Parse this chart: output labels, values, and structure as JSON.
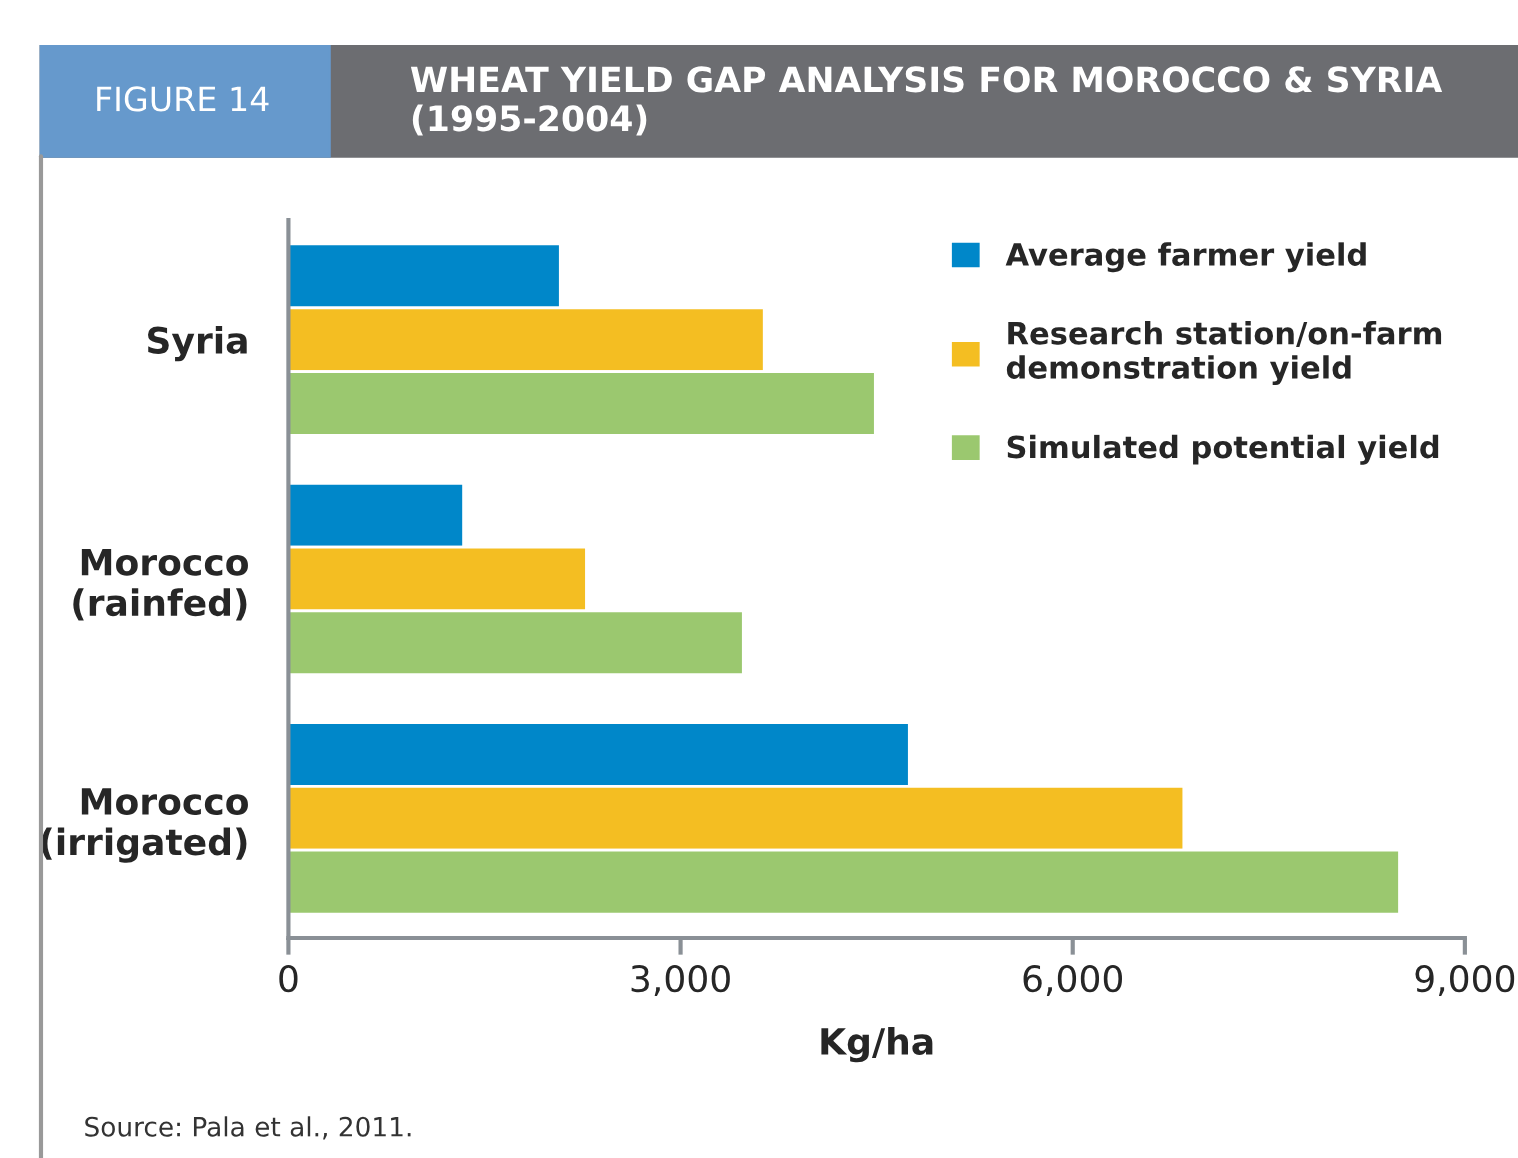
{
  "chart_data": {
    "type": "bar",
    "orientation": "horizontal",
    "title": "WHEAT YIELD GAP ANALYSIS FOR MOROCCO & SYRIA\n(1995-2004)",
    "xlabel": "Kg/ha",
    "annotations": [
      "FIGURE 14",
      "Source: Pala et al., 2011."
    ],
    "categories": [
      "Syria",
      "Morocco\n(rainfed)",
      "Morocco\n(irrigated)"
    ],
    "series": [
      {
        "name": "Average farmer yield",
        "color": "#0087c9",
        "values": [
          2080,
          1340,
          4750
        ]
      },
      {
        "name": "Research station/on-farm\ndemonstration yield",
        "color": "#f4be22",
        "values": [
          3640,
          2280,
          6850
        ]
      },
      {
        "name": "Simulated potential yield",
        "color": "#9bc86f",
        "values": [
          4490,
          3480,
          8500
        ]
      }
    ],
    "xlim": [
      0,
      9000
    ],
    "xticks": [
      {
        "value": 0,
        "label": "0"
      },
      {
        "value": 3000,
        "label": "3,000"
      },
      {
        "value": 6000,
        "label": "6,000"
      },
      {
        "value": 9000,
        "label": "9,000"
      }
    ],
    "grid": false,
    "legend": "top right"
  }
}
